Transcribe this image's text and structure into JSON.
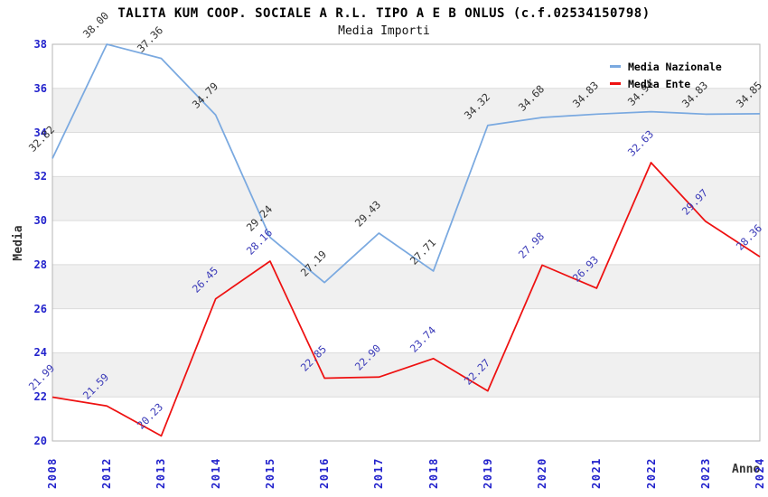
{
  "chart_data": {
    "type": "line",
    "title": "TALITA KUM COOP. SOCIALE A R.L. TIPO A E B ONLUS (c.f.02534150798)",
    "subtitle": "Media Importi",
    "xlabel": "Anno",
    "ylabel": "Media",
    "categories": [
      "2008",
      "2012",
      "2013",
      "2014",
      "2015",
      "2016",
      "2017",
      "2018",
      "2019",
      "2020",
      "2021",
      "2022",
      "2023",
      "2024"
    ],
    "series": [
      {
        "name": "Media Nazionale",
        "color": "#7aa9e0",
        "label_color": "#333333",
        "values": [
          32.82,
          38.0,
          37.36,
          34.79,
          29.24,
          27.19,
          29.43,
          27.71,
          34.32,
          34.68,
          34.83,
          34.94,
          34.83,
          34.85
        ]
      },
      {
        "name": "Media Ente",
        "color": "#ee1111",
        "label_color": "#3a3ab8",
        "values": [
          21.99,
          21.59,
          20.23,
          26.45,
          28.16,
          22.85,
          22.9,
          23.74,
          22.27,
          27.98,
          26.93,
          32.63,
          29.97,
          28.36
        ]
      }
    ],
    "ylim": [
      20,
      38
    ],
    "ytick_step": 2,
    "grid": true,
    "legend_position": "top-right",
    "value_label_decimals": 2
  },
  "style": {
    "axis_tick_color": "#2222cc",
    "band_color": "#f0f0f0",
    "gridline_color": "#dcdcdc",
    "plot_border_color": "#b4b4b4",
    "plot_background": "#ffffff"
  }
}
